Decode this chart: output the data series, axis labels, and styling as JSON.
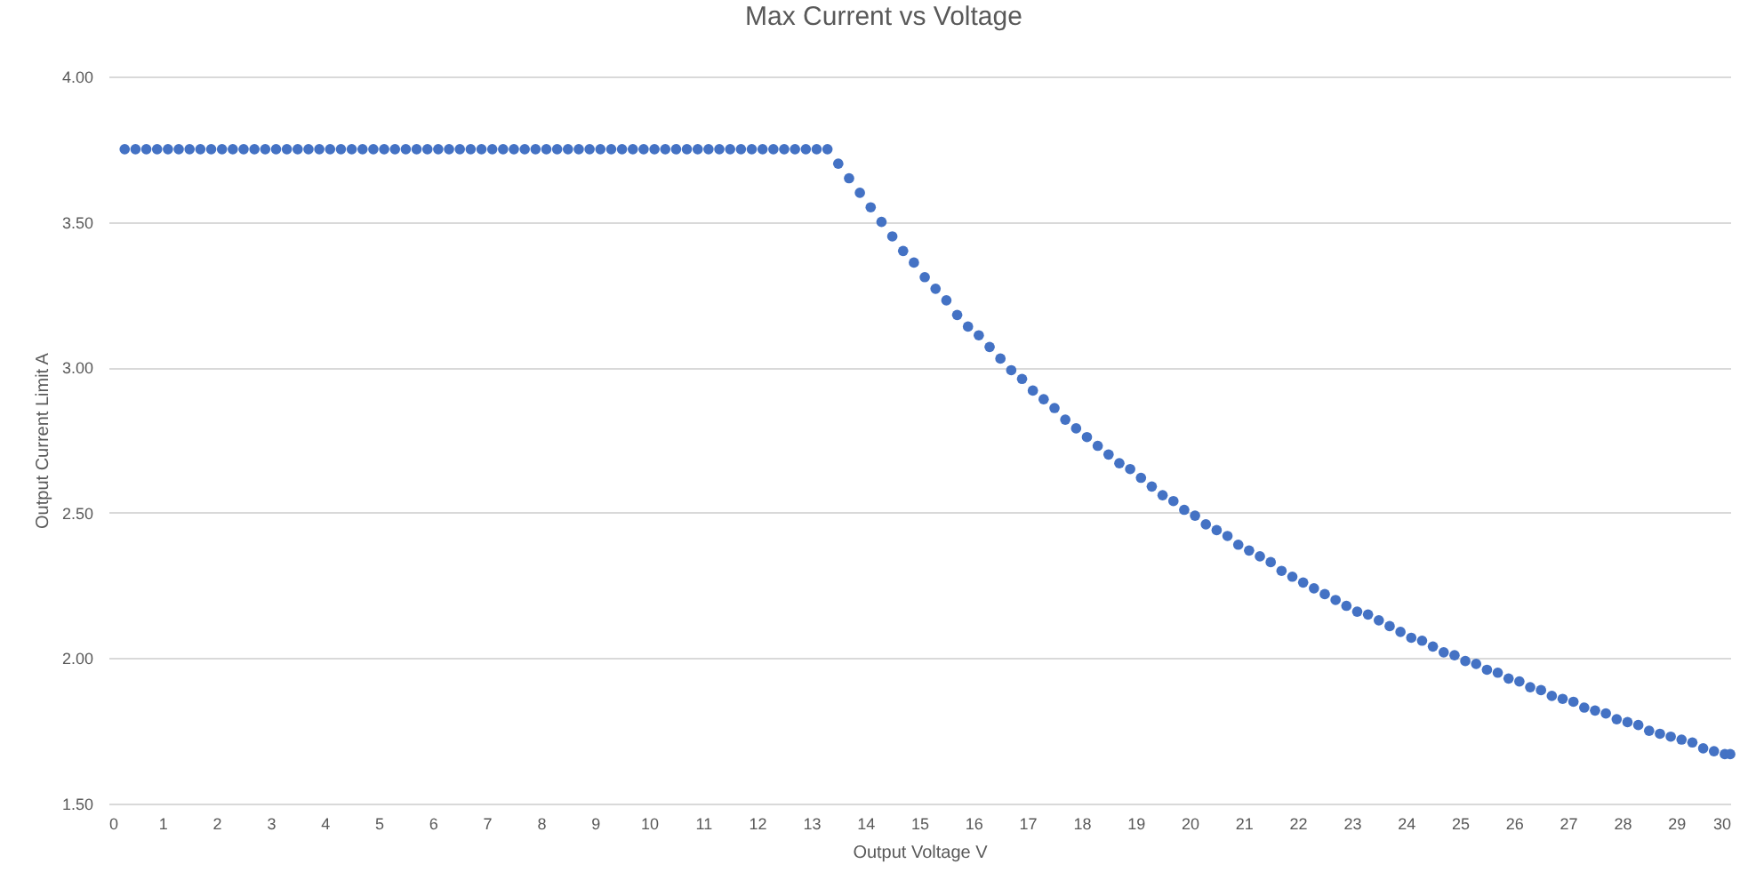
{
  "chart_data": {
    "type": "scatter",
    "title": "Max Current vs Voltage",
    "xlabel": "Output Voltage  V",
    "ylabel": "Output Current Limit  A",
    "color": "#4472c4",
    "marker": "circle",
    "grid": "y",
    "xlim": [
      0,
      30
    ],
    "xticks": [
      0,
      1,
      2,
      3,
      4,
      5,
      6,
      7,
      8,
      9,
      10,
      11,
      12,
      13,
      14,
      15,
      16,
      17,
      18,
      19,
      20,
      21,
      22,
      23,
      24,
      25,
      26,
      27,
      28,
      29,
      30
    ],
    "ylim": [
      1.5,
      4.0
    ],
    "yticks": [
      {
        "value": 1.5,
        "label": "1.50"
      },
      {
        "value": 2.0,
        "label": "2.00"
      },
      {
        "value": 2.5,
        "label": "2.50"
      },
      {
        "value": 3.0,
        "label": "3.00"
      },
      {
        "value": 3.5,
        "label": "3.50"
      },
      {
        "value": 4.0,
        "label": "4.00"
      }
    ],
    "x": [
      0.3,
      0.5,
      0.7,
      0.9,
      1.1,
      1.3,
      1.5,
      1.7,
      1.9,
      2.1,
      2.3,
      2.5,
      2.7,
      2.9,
      3.1,
      3.3,
      3.5,
      3.7,
      3.9,
      4.1,
      4.3,
      4.5,
      4.7,
      4.9,
      5.1,
      5.3,
      5.5,
      5.7,
      5.9,
      6.1,
      6.3,
      6.5,
      6.7,
      6.9,
      7.1,
      7.3,
      7.5,
      7.7,
      7.9,
      8.1,
      8.3,
      8.5,
      8.7,
      8.9,
      9.1,
      9.3,
      9.5,
      9.7,
      9.9,
      10.1,
      10.3,
      10.5,
      10.7,
      10.9,
      11.1,
      11.3,
      11.5,
      11.7,
      11.9,
      12.1,
      12.3,
      12.5,
      12.7,
      12.9,
      13.1,
      13.3,
      13.5,
      13.7,
      13.9,
      14.1,
      14.3,
      14.5,
      14.7,
      14.9,
      15.1,
      15.3,
      15.5,
      15.7,
      15.9,
      16.1,
      16.3,
      16.5,
      16.7,
      16.9,
      17.1,
      17.3,
      17.5,
      17.7,
      17.9,
      18.1,
      18.3,
      18.5,
      18.7,
      18.9,
      19.1,
      19.3,
      19.5,
      19.7,
      19.9,
      20.1,
      20.3,
      20.5,
      20.7,
      20.9,
      21.1,
      21.3,
      21.5,
      21.7,
      21.9,
      22.1,
      22.3,
      22.5,
      22.7,
      22.9,
      23.1,
      23.3,
      23.5,
      23.7,
      23.9,
      24.1,
      24.3,
      24.5,
      24.7,
      24.9,
      25.1,
      25.3,
      25.5,
      25.7,
      25.9,
      26.1,
      26.3,
      26.5,
      26.7,
      26.9,
      27.1,
      27.3,
      27.5,
      27.7,
      27.9,
      28.1,
      28.3,
      28.5,
      28.7,
      28.9,
      29.1,
      29.3,
      29.5,
      29.7,
      29.9,
      30.0
    ],
    "values": [
      3.75,
      3.75,
      3.75,
      3.75,
      3.75,
      3.75,
      3.75,
      3.75,
      3.75,
      3.75,
      3.75,
      3.75,
      3.75,
      3.75,
      3.75,
      3.75,
      3.75,
      3.75,
      3.75,
      3.75,
      3.75,
      3.75,
      3.75,
      3.75,
      3.75,
      3.75,
      3.75,
      3.75,
      3.75,
      3.75,
      3.75,
      3.75,
      3.75,
      3.75,
      3.75,
      3.75,
      3.75,
      3.75,
      3.75,
      3.75,
      3.75,
      3.75,
      3.75,
      3.75,
      3.75,
      3.75,
      3.75,
      3.75,
      3.75,
      3.75,
      3.75,
      3.75,
      3.75,
      3.75,
      3.75,
      3.75,
      3.75,
      3.75,
      3.75,
      3.75,
      3.75,
      3.75,
      3.75,
      3.75,
      3.75,
      3.75,
      3.7,
      3.65,
      3.6,
      3.55,
      3.5,
      3.45,
      3.4,
      3.36,
      3.31,
      3.27,
      3.23,
      3.18,
      3.14,
      3.11,
      3.07,
      3.03,
      2.99,
      2.96,
      2.92,
      2.89,
      2.86,
      2.82,
      2.79,
      2.76,
      2.73,
      2.7,
      2.67,
      2.65,
      2.62,
      2.59,
      2.56,
      2.54,
      2.51,
      2.49,
      2.46,
      2.44,
      2.42,
      2.39,
      2.37,
      2.35,
      2.33,
      2.3,
      2.28,
      2.26,
      2.24,
      2.22,
      2.2,
      2.18,
      2.16,
      2.15,
      2.13,
      2.11,
      2.09,
      2.07,
      2.06,
      2.04,
      2.02,
      2.01,
      1.99,
      1.98,
      1.96,
      1.95,
      1.93,
      1.92,
      1.9,
      1.89,
      1.87,
      1.86,
      1.85,
      1.83,
      1.82,
      1.81,
      1.79,
      1.78,
      1.77,
      1.75,
      1.74,
      1.73,
      1.72,
      1.71,
      1.69,
      1.68,
      1.67,
      1.67
    ]
  }
}
